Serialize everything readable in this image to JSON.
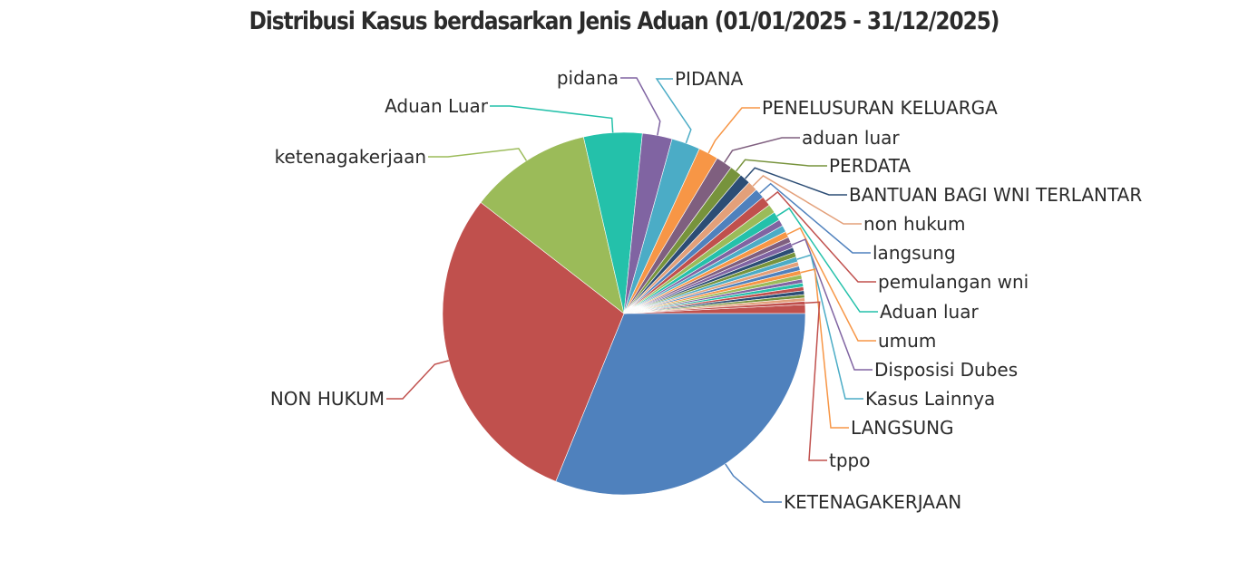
{
  "chart_data": {
    "type": "pie",
    "title": "Distribusi Kasus berdasarkan Jenis Aduan (01/01/2025 - 31/12/2025)",
    "legend": "none",
    "slices": [
      {
        "label": "",
        "value": 0.8,
        "color": "#c0504d"
      },
      {
        "label": "KETENAGAKERJAAN",
        "value": 31.7,
        "color": "#4f81bd"
      },
      {
        "label": "NON HUKUM",
        "value": 29.9,
        "color": "#c0504d"
      },
      {
        "label": "ketenagakerjaan",
        "value": 11.1,
        "color": "#9bbb59"
      },
      {
        "label": "Aduan Luar",
        "value": 5.3,
        "color": "#24c1aa"
      },
      {
        "label": "pidana",
        "value": 2.7,
        "color": "#8064a2"
      },
      {
        "label": "PIDANA",
        "value": 2.6,
        "color": "#4bacc6"
      },
      {
        "label": "PENELUSURAN KELUARGA",
        "value": 1.8,
        "color": "#f79646"
      },
      {
        "label": "aduan luar",
        "value": 1.5,
        "color": "#7f5f7f"
      },
      {
        "label": "PERDATA",
        "value": 1.1,
        "color": "#77933c"
      },
      {
        "label": "BANTUAN BAGI WNI TERLANTAR",
        "value": 1.0,
        "color": "#2c4d75"
      },
      {
        "label": "non hukum",
        "value": 0.9,
        "color": "#e3a07a"
      },
      {
        "label": "langsung",
        "value": 0.9,
        "color": "#4f81bd"
      },
      {
        "label": "pemulangan wni",
        "value": 0.9,
        "color": "#c0504d"
      },
      {
        "label": "",
        "value": 0.8,
        "color": "#9bbb59"
      },
      {
        "label": "Aduan luar",
        "value": 0.8,
        "color": "#24c1aa"
      },
      {
        "label": "",
        "value": 0.6,
        "color": "#8064a2"
      },
      {
        "label": "",
        "value": 0.6,
        "color": "#4bacc6"
      },
      {
        "label": "umum",
        "value": 0.55,
        "color": "#f79646"
      },
      {
        "label": "",
        "value": 0.5,
        "color": "#7f5f7f"
      },
      {
        "label": "Disposisi Dubes",
        "value": 0.5,
        "color": "#8064a2"
      },
      {
        "label": "",
        "value": 0.45,
        "color": "#2c4d75"
      },
      {
        "label": "",
        "value": 0.45,
        "color": "#77933c"
      },
      {
        "label": "Kasus Lainnya",
        "value": 0.45,
        "color": "#4bacc6"
      },
      {
        "label": "",
        "value": 0.4,
        "color": "#e3a07a"
      },
      {
        "label": "",
        "value": 0.4,
        "color": "#4f81bd"
      },
      {
        "label": "LANGSUNG",
        "value": 0.4,
        "color": "#f79646"
      },
      {
        "label": "",
        "value": 0.4,
        "color": "#9bbb59"
      },
      {
        "label": "",
        "value": 0.35,
        "color": "#8064a2"
      },
      {
        "label": "",
        "value": 0.35,
        "color": "#24c1aa"
      },
      {
        "label": "",
        "value": 0.35,
        "color": "#c0504d"
      },
      {
        "label": "",
        "value": 0.35,
        "color": "#2c4d75"
      },
      {
        "label": "",
        "value": 0.3,
        "color": "#77933c"
      },
      {
        "label": "",
        "value": 0.3,
        "color": "#e3a07a"
      },
      {
        "label": "tppo",
        "value": 0.3,
        "color": "#c0504d"
      }
    ]
  }
}
